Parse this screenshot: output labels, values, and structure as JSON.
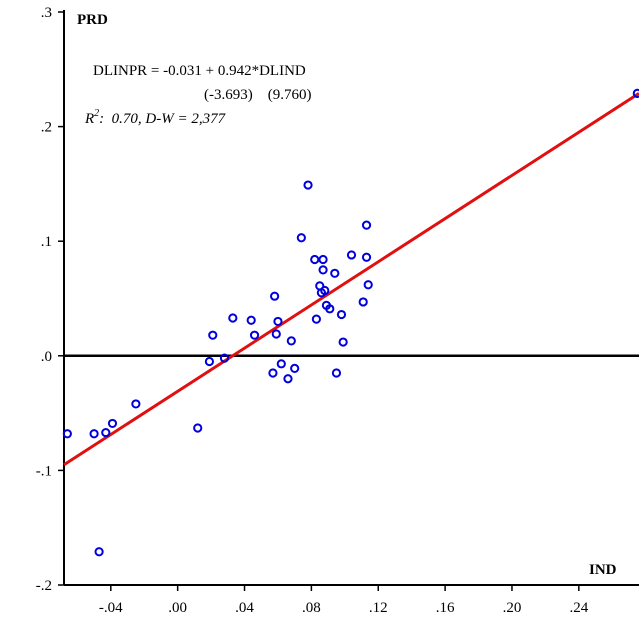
{
  "chart_data": {
    "type": "scatter",
    "xlabel": "IND",
    "ylabel": "PRD",
    "xlim": [
      -0.068,
      0.276
    ],
    "ylim": [
      -0.2,
      0.3
    ],
    "x_ticks": [
      "-.04",
      ".00",
      ".04",
      ".08",
      ".12",
      ".16",
      ".20",
      ".24"
    ],
    "x_tick_values": [
      -0.04,
      0.0,
      0.04,
      0.08,
      0.12,
      0.16,
      0.2,
      0.24
    ],
    "y_ticks": [
      ".3",
      ".2",
      ".1",
      ".0",
      "-.1",
      "-.2"
    ],
    "y_tick_values": [
      0.3,
      0.2,
      0.1,
      0.0,
      -0.1,
      -0.2
    ],
    "zero_line": 0.0,
    "grid": false,
    "annotations": {
      "equation": "DLINPR = -0.031 +  0.942*DLIND",
      "tstats": "(-3.693)    (9.760)",
      "r2_prefix": "R",
      "r2_sup": "2",
      "r2_rest": ":  0.70, D-W = 2,377"
    },
    "regression": {
      "intercept": -0.031,
      "slope": 0.942,
      "color": "#e01010"
    },
    "point_color": "#0000dd",
    "points": [
      {
        "x": -0.066,
        "y": -0.068
      },
      {
        "x": -0.05,
        "y": -0.068
      },
      {
        "x": -0.043,
        "y": -0.067
      },
      {
        "x": -0.039,
        "y": -0.059
      },
      {
        "x": -0.025,
        "y": -0.042
      },
      {
        "x": -0.047,
        "y": -0.171
      },
      {
        "x": 0.012,
        "y": -0.063
      },
      {
        "x": 0.019,
        "y": -0.005
      },
      {
        "x": 0.021,
        "y": 0.018
      },
      {
        "x": 0.028,
        "y": -0.002
      },
      {
        "x": 0.033,
        "y": 0.033
      },
      {
        "x": 0.044,
        "y": 0.031
      },
      {
        "x": 0.046,
        "y": 0.018
      },
      {
        "x": 0.057,
        "y": -0.015
      },
      {
        "x": 0.058,
        "y": 0.052
      },
      {
        "x": 0.059,
        "y": 0.019
      },
      {
        "x": 0.06,
        "y": 0.03
      },
      {
        "x": 0.062,
        "y": -0.007
      },
      {
        "x": 0.066,
        "y": -0.02
      },
      {
        "x": 0.068,
        "y": 0.013
      },
      {
        "x": 0.07,
        "y": -0.011
      },
      {
        "x": 0.074,
        "y": 0.103
      },
      {
        "x": 0.078,
        "y": 0.149
      },
      {
        "x": 0.082,
        "y": 0.084
      },
      {
        "x": 0.083,
        "y": 0.032
      },
      {
        "x": 0.085,
        "y": 0.061
      },
      {
        "x": 0.086,
        "y": 0.055
      },
      {
        "x": 0.087,
        "y": 0.075
      },
      {
        "x": 0.087,
        "y": 0.084
      },
      {
        "x": 0.088,
        "y": 0.057
      },
      {
        "x": 0.089,
        "y": 0.044
      },
      {
        "x": 0.091,
        "y": 0.041
      },
      {
        "x": 0.094,
        "y": 0.072
      },
      {
        "x": 0.095,
        "y": -0.015
      },
      {
        "x": 0.098,
        "y": 0.036
      },
      {
        "x": 0.099,
        "y": 0.012
      },
      {
        "x": 0.104,
        "y": 0.088
      },
      {
        "x": 0.111,
        "y": 0.047
      },
      {
        "x": 0.113,
        "y": 0.114
      },
      {
        "x": 0.113,
        "y": 0.086
      },
      {
        "x": 0.114,
        "y": 0.062
      },
      {
        "x": 0.275,
        "y": 0.229
      }
    ]
  }
}
